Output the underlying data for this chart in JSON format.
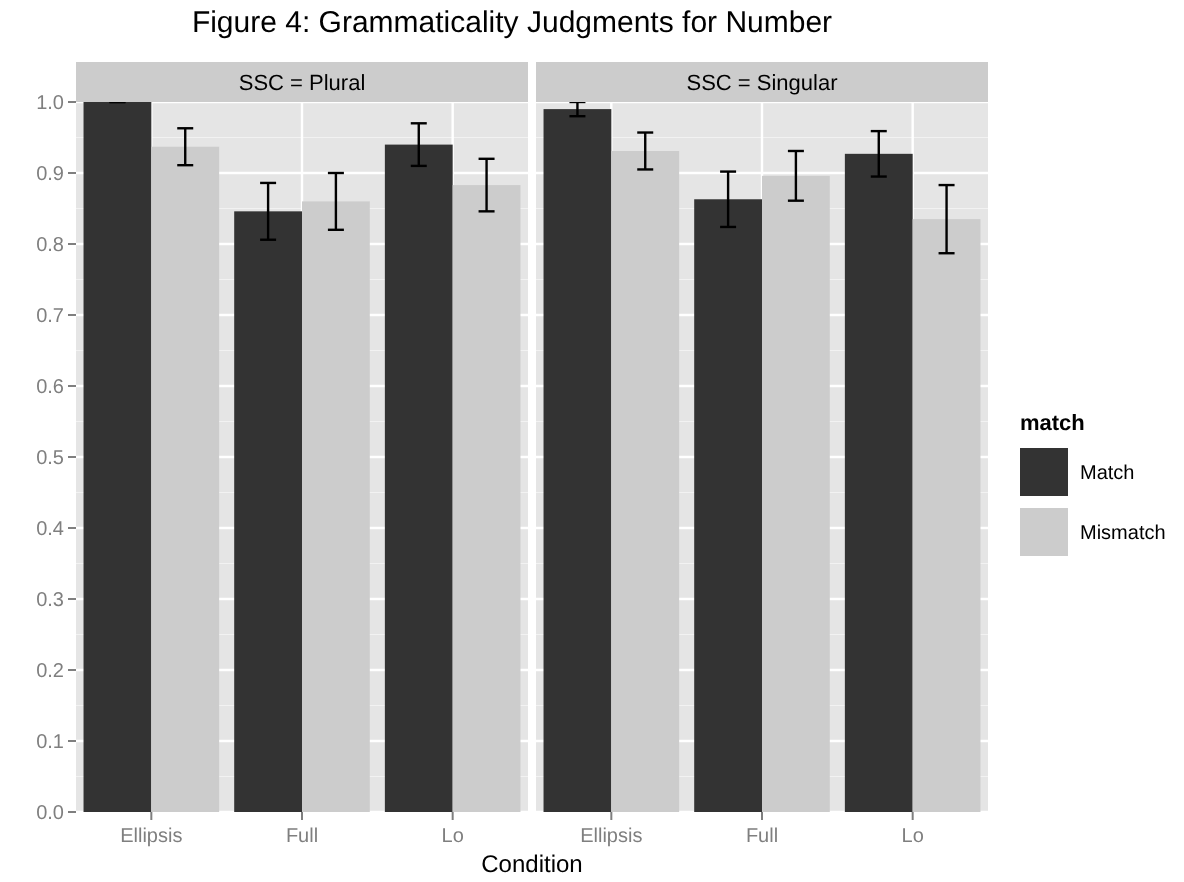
{
  "chart_data": [
    {
      "type": "bar",
      "title": "Figure 4: Grammaticality Judgments for Number",
      "subtitle": "SSC = Plural",
      "xlabel": "Condition",
      "categories": [
        "Ellipsis",
        "Full",
        "Lo"
      ],
      "series": [
        {
          "color": "#333333",
          "values": [
            1.0,
            0.846,
            0.94
          ],
          "errors": [
            0,
            0.04,
            0.03
          ]
        },
        {
          "color": "#cccccc",
          "values": [
            0.937,
            0.86,
            0.883
          ],
          "errors": [
            0.026,
            0.04,
            0.037
          ]
        }
      ],
      "ylim": [
        0,
        1
      ],
      "yticks": [
        {
          "value": 0,
          "label": "0.0"
        },
        0.1,
        0.2,
        0.3,
        0.4,
        0.5,
        0.6,
        0.7,
        0.8,
        0.9,
        {
          "value": 1,
          "label": "1.0"
        }
      ],
      "grid": true,
      "legend": false
    },
    {
      "type": "bar",
      "subtitle": "SSC = Singular",
      "legend_title": "match",
      "categories": [
        "Ellipsis",
        "Full",
        "Lo"
      ],
      "series": [
        {
          "name": "Match",
          "color": "#333333",
          "values": [
            0.99,
            0.863,
            0.927
          ],
          "errors": [
            0.01,
            0.039,
            0.032
          ]
        },
        {
          "name": "Mismatch",
          "color": "#cccccc",
          "values": [
            0.931,
            0.896,
            0.835
          ],
          "errors": [
            0.026,
            0.035,
            0.048
          ]
        }
      ],
      "ylim": [
        0,
        1
      ],
      "grid": true,
      "legend": "right",
      "tick_labels": "x"
    }
  ]
}
